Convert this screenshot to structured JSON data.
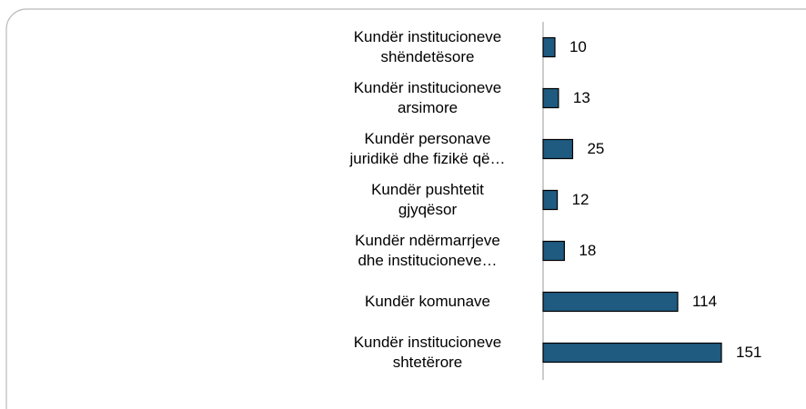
{
  "chart_data": {
    "type": "bar",
    "orientation": "horizontal",
    "categories": [
      "Kundër institucioneve\nshëndetësore",
      "Kundër institucioneve\narsimore",
      "Kundër personave\njuridikë dhe fizikë që…",
      "Kundër pushtetit\ngjyqësor",
      "Kundër ndërmarrjeve\ndhe institucioneve…",
      "Kundër komunave",
      "Kundër institucioneve\nshtetërore"
    ],
    "values": [
      10,
      13,
      25,
      12,
      18,
      114,
      151
    ],
    "color": "#1f5a80"
  }
}
